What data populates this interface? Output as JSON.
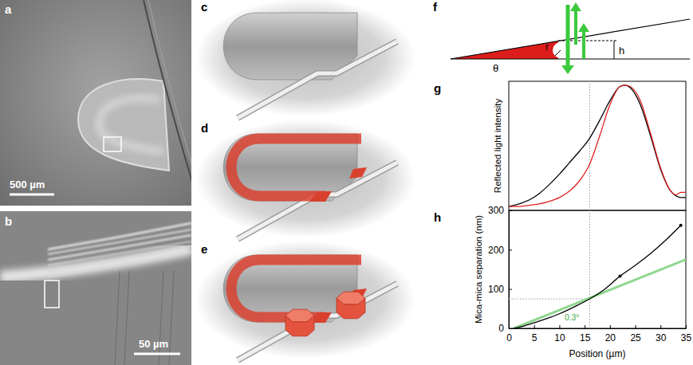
{
  "panels": {
    "a": {
      "letter": "a",
      "scale_bar": "500 µm"
    },
    "b": {
      "letter": "b",
      "scale_bar": "50 µm"
    },
    "c": {
      "letter": "c"
    },
    "d": {
      "letter": "d"
    },
    "e": {
      "letter": "e"
    },
    "f": {
      "letter": "f",
      "angle_label": "θ",
      "radius_label": "r",
      "height_label": "h"
    }
  },
  "chart_data": [
    {
      "type": "line",
      "panel_label": "g",
      "y_label": "Reflected light intensity",
      "xlim": [
        0,
        35
      ],
      "ylim": [
        0,
        1
      ],
      "tick_labels": false,
      "reference_x": 16,
      "series": [
        {
          "color": "#000000",
          "x": [
            0,
            2,
            4,
            6,
            8,
            10,
            12,
            14,
            16,
            18,
            20,
            22,
            23,
            24,
            26,
            28,
            30,
            32,
            34,
            35
          ],
          "values": [
            0.03,
            0.05,
            0.08,
            0.13,
            0.2,
            0.28,
            0.37,
            0.46,
            0.56,
            0.7,
            0.85,
            0.96,
            0.97,
            0.95,
            0.82,
            0.58,
            0.32,
            0.15,
            0.1,
            0.1
          ]
        },
        {
          "color": "#e02020",
          "x": [
            0,
            2,
            4,
            6,
            8,
            10,
            12,
            14,
            16,
            18,
            20,
            22,
            23,
            24,
            26,
            28,
            30,
            32,
            33,
            34,
            35
          ],
          "values": [
            0.03,
            0.03,
            0.04,
            0.05,
            0.07,
            0.1,
            0.15,
            0.23,
            0.36,
            0.58,
            0.82,
            0.96,
            0.97,
            0.96,
            0.85,
            0.6,
            0.33,
            0.15,
            0.12,
            0.14,
            0.14
          ]
        }
      ]
    },
    {
      "type": "line",
      "panel_label": "h",
      "x_label": "Position (µm)",
      "y_label": "Mica-mica separation (nm)",
      "xlim": [
        0,
        35
      ],
      "ylim": [
        0,
        300
      ],
      "xticks": [
        0,
        5,
        10,
        15,
        20,
        25,
        30,
        35
      ],
      "yticks": [
        0,
        100,
        200,
        300
      ],
      "reference_x": 16,
      "reference_y": 75,
      "annotations": [
        {
          "text": "0.3°",
          "x": 12.5,
          "y": 20
        }
      ],
      "series": [
        {
          "color": "#8fd88f",
          "x": [
            1,
            35
          ],
          "values": [
            0,
            175
          ]
        },
        {
          "color": "#000000",
          "x": [
            1,
            3,
            5,
            8,
            10,
            13,
            16,
            19,
            22,
            25,
            28,
            31,
            34
          ],
          "values": [
            0,
            6,
            14,
            27,
            37,
            55,
            75,
            100,
            133,
            160,
            190,
            224,
            262
          ]
        },
        {
          "type": "scatter",
          "marker": "circle",
          "color": "#000000",
          "x": [
            22,
            34
          ],
          "values": [
            133,
            262
          ]
        }
      ]
    }
  ]
}
